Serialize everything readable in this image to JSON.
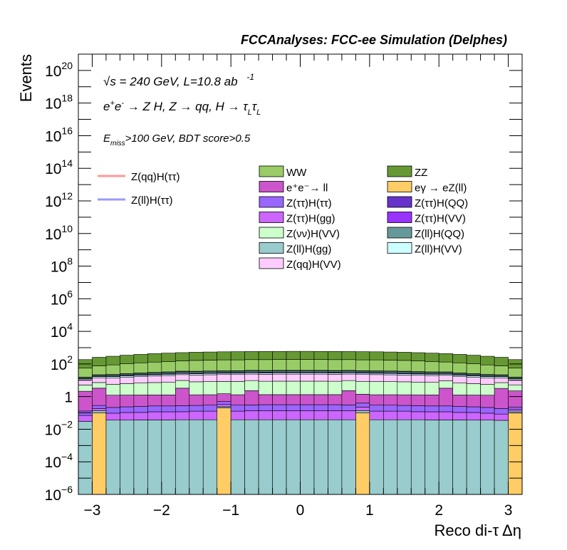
{
  "chart_data": {
    "type": "bar",
    "stacked": true,
    "log_y": true,
    "title": "FCCAnalyses: FCC-ee Simulation (Delphes)",
    "xlabel": "Reco di-τ Δη",
    "ylabel": "Events",
    "xlim": [
      -3.2,
      3.2
    ],
    "ylim": [
      1e-06,
      1e+21
    ],
    "x_ticks": [
      -3,
      -2,
      -1,
      0,
      1,
      2,
      3
    ],
    "x_tick_labels": [
      "−3",
      "−2",
      "−1",
      "0",
      "1",
      "2",
      "3"
    ],
    "y_ticks": [
      1e-06,
      0.0001,
      0.01,
      1,
      100.0,
      10000.0,
      1000000.0,
      100000000.0,
      10000000000.0,
      1000000000000.0,
      100000000000000.0,
      1e+16,
      1e+18,
      1e+20
    ],
    "y_tick_labels": [
      {
        "base": "10",
        "exp": "−6"
      },
      {
        "base": "10",
        "exp": "−4"
      },
      {
        "base": "10",
        "exp": "−2"
      },
      {
        "base": "1",
        "exp": ""
      },
      {
        "base": "10",
        "exp": "2"
      },
      {
        "base": "10",
        "exp": "4"
      },
      {
        "base": "10",
        "exp": "6"
      },
      {
        "base": "10",
        "exp": "8"
      },
      {
        "base": "10",
        "exp": "10"
      },
      {
        "base": "10",
        "exp": "12"
      },
      {
        "base": "10",
        "exp": "14"
      },
      {
        "base": "10",
        "exp": "16"
      },
      {
        "base": "10",
        "exp": "18"
      },
      {
        "base": "10",
        "exp": "20"
      }
    ],
    "annotations": {
      "line1": "√s = 240 GeV, L=10.8 ab",
      "line1_sup": "-1",
      "line2_a": "e",
      "line2_b": "+",
      "line2_c": "e",
      "line2_d": "-",
      "line2_e": " → Z H, Z  → qq, H  →  τ",
      "line2_f": "L",
      "line2_g": "τ",
      "line2_h": "L",
      "line3_a": "E",
      "line3_b": "miss",
      "line3_c": ">100 GeV, BDT score>0.5"
    },
    "bin_edges": [
      -3.2,
      -3.0,
      -2.8,
      -2.6,
      -2.4,
      -2.2,
      -2.0,
      -1.8,
      -1.6,
      -1.4,
      -1.2,
      -1.0,
      -0.8,
      -0.6,
      -0.4,
      -0.2,
      0.0,
      0.2,
      0.4,
      0.6,
      0.8,
      1.0,
      1.2,
      1.4,
      1.6,
      1.8,
      2.0,
      2.2,
      2.4,
      2.6,
      2.8,
      3.0,
      3.2
    ],
    "stack_order": [
      "eyZll",
      "ZllHgg",
      "ZttHgg",
      "ZttHtt",
      "eell",
      "ZvvHVV",
      "ZqqHVV",
      "ZllHVV",
      "ZttHQQ",
      "ZllHQQ",
      "ZttHVV",
      "WW",
      "ZZ"
    ],
    "series": [
      {
        "key": "WW",
        "name": "WW",
        "color": "#99cc66",
        "values": [
          40,
          55,
          65,
          80,
          90,
          100,
          110,
          120,
          130,
          135,
          140,
          140,
          145,
          145,
          148,
          150,
          150,
          148,
          145,
          145,
          140,
          140,
          135,
          130,
          120,
          110,
          100,
          90,
          80,
          65,
          55,
          40
        ]
      },
      {
        "key": "ZZ",
        "name": "ZZ",
        "color": "#669933",
        "values": [
          130,
          180,
          210,
          240,
          270,
          300,
          320,
          340,
          360,
          370,
          380,
          390,
          395,
          400,
          400,
          405,
          405,
          400,
          400,
          395,
          390,
          380,
          370,
          360,
          340,
          320,
          300,
          270,
          240,
          210,
          180,
          130
        ]
      },
      {
        "key": "eell",
        "name": "e⁺e⁻→ ll",
        "color": "#cc55cc",
        "values": [
          2,
          3,
          1,
          1,
          1,
          1,
          1,
          3,
          1,
          1,
          1,
          1,
          2,
          1,
          1,
          1,
          1,
          1,
          1,
          2,
          1,
          1,
          1,
          1,
          1,
          1,
          3,
          1,
          1,
          1,
          3,
          2
        ]
      },
      {
        "key": "eyZll",
        "name": "eγ → eZ(ll)",
        "color": "#ffcc66",
        "values": [
          0,
          0.1,
          0,
          0,
          0,
          0,
          0,
          0,
          0,
          0,
          0.2,
          0,
          0,
          0,
          0,
          0,
          0,
          0,
          0,
          0,
          0.1,
          0,
          0,
          0,
          0,
          0,
          0,
          0,
          0,
          0,
          0,
          0.1
        ]
      },
      {
        "key": "ZttHtt",
        "name": "Z(ττ)H(ττ)",
        "color": "#9966ff",
        "values": [
          0.06,
          0.1,
          0.12,
          0.13,
          0.14,
          0.15,
          0.15,
          0.16,
          0.16,
          0.17,
          0.17,
          0.17,
          0.17,
          0.18,
          0.18,
          0.18,
          0.18,
          0.18,
          0.18,
          0.17,
          0.17,
          0.17,
          0.17,
          0.16,
          0.16,
          0.15,
          0.15,
          0.14,
          0.13,
          0.12,
          0.1,
          0.06
        ]
      },
      {
        "key": "ZttHQQ",
        "name": "Z(ττ)H(QQ)",
        "color": "#6633cc",
        "values": [
          0.8,
          1.2,
          1.5,
          1.8,
          2,
          2.2,
          2.4,
          2.6,
          2.8,
          3,
          3,
          3.1,
          3.2,
          3.2,
          3.3,
          3.3,
          3.3,
          3.3,
          3.2,
          3.2,
          3.1,
          3,
          3,
          2.8,
          2.6,
          2.4,
          2.2,
          2,
          1.8,
          1.5,
          1.2,
          0.8
        ]
      },
      {
        "key": "ZttHgg",
        "name": "Z(ττ)H(gg)",
        "color": "#cc66ff",
        "values": [
          0.04,
          0.05,
          0.06,
          0.07,
          0.07,
          0.08,
          0.08,
          0.08,
          0.09,
          0.09,
          0.09,
          0.09,
          0.1,
          0.1,
          0.1,
          0.1,
          0.1,
          0.1,
          0.1,
          0.1,
          0.09,
          0.09,
          0.09,
          0.09,
          0.08,
          0.08,
          0.08,
          0.07,
          0.07,
          0.06,
          0.05,
          0.04
        ]
      },
      {
        "key": "ZttHVV",
        "name": "Z(ττ)H(VV)",
        "color": "#9933ff",
        "values": [
          0.6,
          0.8,
          1,
          1.2,
          1.3,
          1.4,
          1.5,
          1.6,
          1.7,
          1.8,
          1.8,
          1.9,
          1.9,
          2,
          2,
          2,
          2,
          2,
          2,
          1.9,
          1.9,
          1.8,
          1.8,
          1.7,
          1.6,
          1.5,
          1.4,
          1.3,
          1.2,
          1,
          0.8,
          0.6
        ]
      },
      {
        "key": "ZvvHVV",
        "name": "Z(νν)H(VV)",
        "color": "#ccffcc",
        "values": [
          3,
          4,
          4.5,
          5,
          5.5,
          6,
          6.2,
          6.5,
          6.8,
          7,
          7,
          7.2,
          7.3,
          7.4,
          7.5,
          7.5,
          7.5,
          7.5,
          7.4,
          7.3,
          7.2,
          7,
          7,
          6.8,
          6.5,
          6.2,
          6,
          5.5,
          5,
          4.5,
          4,
          3
        ]
      },
      {
        "key": "ZllHQQ",
        "name": "Z(ll)H(QQ)",
        "color": "#669999",
        "values": [
          2,
          3,
          3.5,
          4,
          4.5,
          5,
          5.3,
          5.6,
          5.9,
          6.1,
          6.2,
          6.3,
          6.4,
          6.5,
          6.5,
          6.6,
          6.6,
          6.5,
          6.5,
          6.4,
          6.3,
          6.2,
          6.1,
          5.9,
          5.6,
          5.3,
          5,
          4.5,
          4,
          3.5,
          3,
          2
        ]
      },
      {
        "key": "ZllHgg",
        "name": "Z(ll)H(gg)",
        "color": "#99cccc",
        "values": [
          0.03,
          0.035,
          0.036,
          0.036,
          0.037,
          0.037,
          0.037,
          0.038,
          0.038,
          0.038,
          0.038,
          0.038,
          0.038,
          0.038,
          0.038,
          0.038,
          0.038,
          0.038,
          0.038,
          0.038,
          0.038,
          0.038,
          0.038,
          0.038,
          0.038,
          0.037,
          0.037,
          0.037,
          0.036,
          0.036,
          0.035,
          0.03
        ]
      },
      {
        "key": "ZllHVV",
        "name": "Z(ll)H(VV)",
        "color": "#ccffff",
        "values": [
          2,
          2.5,
          3,
          3.2,
          3.5,
          3.8,
          4,
          4.2,
          4.4,
          4.5,
          4.6,
          4.7,
          4.8,
          4.8,
          4.9,
          4.9,
          4.9,
          4.9,
          4.8,
          4.8,
          4.7,
          4.6,
          4.5,
          4.4,
          4.2,
          4,
          3.8,
          3.5,
          3.2,
          3,
          2.5,
          2
        ]
      },
      {
        "key": "ZqqHVV",
        "name": "Z(qq)H(VV)",
        "color": "#ffccff",
        "values": [
          5,
          7,
          8,
          9,
          10,
          11,
          12,
          12.5,
          13,
          13.5,
          14,
          14,
          14.5,
          14.5,
          15,
          15,
          15,
          15,
          14.5,
          14.5,
          14,
          14,
          13.5,
          13,
          12.5,
          12,
          11,
          10,
          9,
          8,
          7,
          5
        ]
      }
    ],
    "signal_lines": [
      {
        "key": "sig_qq",
        "name": "Z(qq)H(ττ)",
        "color": "#ff9999"
      },
      {
        "key": "sig_ll",
        "name": "Z(ll)H(ττ)",
        "color": "#9999ff"
      }
    ],
    "legend_layout": [
      [
        "WW",
        "ZZ"
      ],
      [
        "eell",
        "eyZll"
      ],
      [
        "ZttHtt",
        "ZttHQQ"
      ],
      [
        "ZttHgg",
        "ZttHVV"
      ],
      [
        "ZvvHVV",
        "ZllHQQ"
      ],
      [
        "ZllHgg",
        "ZllHVV"
      ],
      [
        "ZqqHVV",
        null
      ]
    ],
    "legend_placement": "top"
  }
}
